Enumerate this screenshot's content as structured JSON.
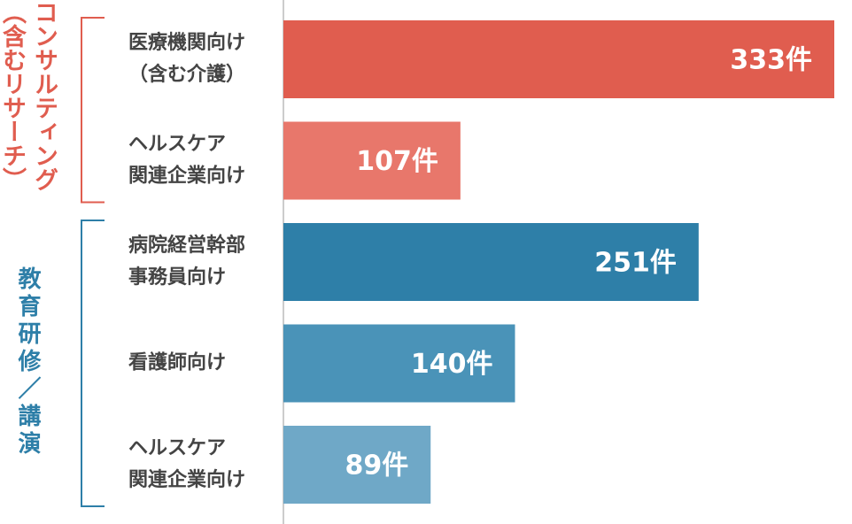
{
  "chart_data": {
    "type": "bar",
    "orientation": "horizontal",
    "groups": [
      {
        "label": [
          "コンサルティング",
          "（含むリサーチ）"
        ],
        "color": "#e05d4f",
        "categories": [
          [
            "医療機関向け",
            "（含む介護）"
          ],
          [
            "ヘルスケア",
            "関連企業向け"
          ]
        ],
        "values": [
          333,
          107
        ],
        "value_labels": [
          "333件",
          "107件"
        ],
        "colors": [
          "#e05d4f",
          "#e8776b"
        ]
      },
      {
        "label": [
          "教育研修／講演"
        ],
        "color": "#2e7fa8",
        "categories": [
          [
            "病院経営幹部",
            "事務員向け"
          ],
          [
            "看護師向け"
          ],
          [
            "ヘルスケア",
            "関連企業向け"
          ]
        ],
        "values": [
          251,
          140,
          89
        ],
        "value_labels": [
          "251件",
          "140件",
          "89件"
        ],
        "colors": [
          "#2e7fa8",
          "#4a93b8",
          "#6fa8c7"
        ]
      }
    ]
  }
}
